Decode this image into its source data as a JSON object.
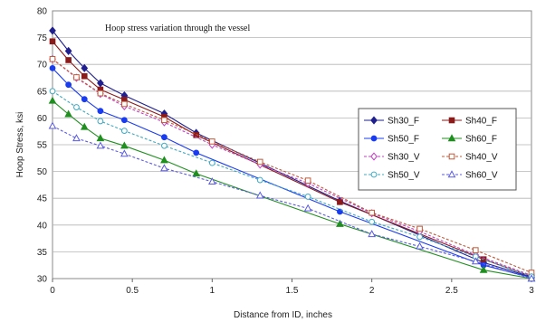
{
  "chart_data": {
    "type": "line",
    "title": "Hoop stress variation through the vessel",
    "xlabel": "Distance from ID, inches",
    "ylabel": "Hoop Stress, ksi",
    "xlim": [
      0,
      3
    ],
    "ylim": [
      30,
      80
    ],
    "xticks": [
      "0",
      "0.5",
      "1",
      "1.5",
      "2",
      "2.5",
      "3"
    ],
    "yticks": [
      "30",
      "35",
      "40",
      "45",
      "50",
      "55",
      "60",
      "65",
      "70",
      "75",
      "80"
    ],
    "grid": "horizontal",
    "legend_position": "right",
    "series": [
      {
        "name": "Sh30_F",
        "color": "#1f1f8f",
        "marker": "diamond",
        "filled": true,
        "dashed": false,
        "points": [
          [
            0,
            76.3
          ],
          [
            0.1,
            72.5
          ],
          [
            0.2,
            69.3
          ],
          [
            0.3,
            66.5
          ],
          [
            0.45,
            64.2
          ],
          [
            0.7,
            60.8
          ],
          [
            0.9,
            57.2
          ],
          [
            1.8,
            44.5
          ],
          [
            2.7,
            33.0
          ],
          [
            3.0,
            30.3
          ]
        ]
      },
      {
        "name": "Sh40_F",
        "color": "#8b1a1a",
        "marker": "square",
        "filled": true,
        "dashed": false,
        "points": [
          [
            0,
            74.3
          ],
          [
            0.1,
            70.8
          ],
          [
            0.2,
            67.8
          ],
          [
            0.3,
            65.3
          ],
          [
            0.45,
            63.4
          ],
          [
            0.7,
            60.2
          ],
          [
            0.9,
            56.8
          ],
          [
            1.8,
            44.3
          ],
          [
            2.7,
            33.6
          ],
          [
            3.0,
            30.4
          ]
        ]
      },
      {
        "name": "Sh50_F",
        "color": "#1a3cf0",
        "marker": "circle",
        "filled": true,
        "dashed": false,
        "points": [
          [
            0,
            69.3
          ],
          [
            0.1,
            66.2
          ],
          [
            0.2,
            63.5
          ],
          [
            0.3,
            61.3
          ],
          [
            0.45,
            59.6
          ],
          [
            0.7,
            56.4
          ],
          [
            0.9,
            53.5
          ],
          [
            1.8,
            42.5
          ],
          [
            2.7,
            32.5
          ],
          [
            3.0,
            30.2
          ]
        ]
      },
      {
        "name": "Sh60_F",
        "color": "#1f8f1f",
        "marker": "triangle",
        "filled": true,
        "dashed": false,
        "points": [
          [
            0,
            63.2
          ],
          [
            0.1,
            60.7
          ],
          [
            0.2,
            58.3
          ],
          [
            0.3,
            56.2
          ],
          [
            0.45,
            54.8
          ],
          [
            0.7,
            52.1
          ],
          [
            0.9,
            49.6
          ],
          [
            1.8,
            40.2
          ],
          [
            2.7,
            31.6
          ],
          [
            3.0,
            30.0
          ]
        ]
      },
      {
        "name": "Sh30_V",
        "color": "#c040c0",
        "marker": "diamond",
        "filled": false,
        "dashed": true,
        "points": [
          [
            0,
            71.0
          ],
          [
            0.15,
            67.5
          ],
          [
            0.3,
            64.5
          ],
          [
            0.45,
            62.2
          ],
          [
            0.7,
            59.2
          ],
          [
            1.0,
            55.0
          ],
          [
            1.3,
            51.3
          ],
          [
            1.6,
            47.8
          ],
          [
            2.0,
            42.2
          ],
          [
            2.3,
            38.8
          ],
          [
            2.65,
            34.4
          ],
          [
            3.0,
            30.6
          ]
        ]
      },
      {
        "name": "Sh40_V",
        "color": "#c05a3a",
        "marker": "square",
        "filled": false,
        "dashed": true,
        "points": [
          [
            0,
            71.0
          ],
          [
            0.15,
            67.6
          ],
          [
            0.3,
            64.6
          ],
          [
            0.45,
            62.6
          ],
          [
            0.7,
            59.6
          ],
          [
            1.0,
            55.6
          ],
          [
            1.3,
            51.8
          ],
          [
            1.6,
            48.3
          ],
          [
            2.0,
            42.3
          ],
          [
            2.3,
            39.3
          ],
          [
            2.65,
            35.3
          ],
          [
            3.0,
            31.1
          ]
        ]
      },
      {
        "name": "Sh50_V",
        "color": "#40a8c0",
        "marker": "circle",
        "filled": false,
        "dashed": true,
        "points": [
          [
            0,
            65.0
          ],
          [
            0.15,
            62.0
          ],
          [
            0.3,
            59.4
          ],
          [
            0.45,
            57.6
          ],
          [
            0.7,
            54.8
          ],
          [
            1.0,
            51.6
          ],
          [
            1.3,
            48.4
          ],
          [
            1.6,
            45.3
          ],
          [
            2.0,
            40.6
          ],
          [
            2.3,
            37.8
          ],
          [
            2.65,
            34.1
          ],
          [
            3.0,
            30.4
          ]
        ]
      },
      {
        "name": "Sh60_V",
        "color": "#5a5ae0",
        "marker": "triangle",
        "filled": false,
        "dashed": true,
        "points": [
          [
            0,
            58.5
          ],
          [
            0.15,
            56.2
          ],
          [
            0.3,
            54.8
          ],
          [
            0.45,
            53.3
          ],
          [
            0.7,
            50.6
          ],
          [
            1.0,
            48.1
          ],
          [
            1.3,
            45.5
          ],
          [
            1.6,
            43.1
          ],
          [
            2.0,
            38.3
          ],
          [
            2.3,
            36.0
          ],
          [
            2.65,
            33.2
          ],
          [
            3.0,
            30.0
          ]
        ]
      }
    ]
  }
}
